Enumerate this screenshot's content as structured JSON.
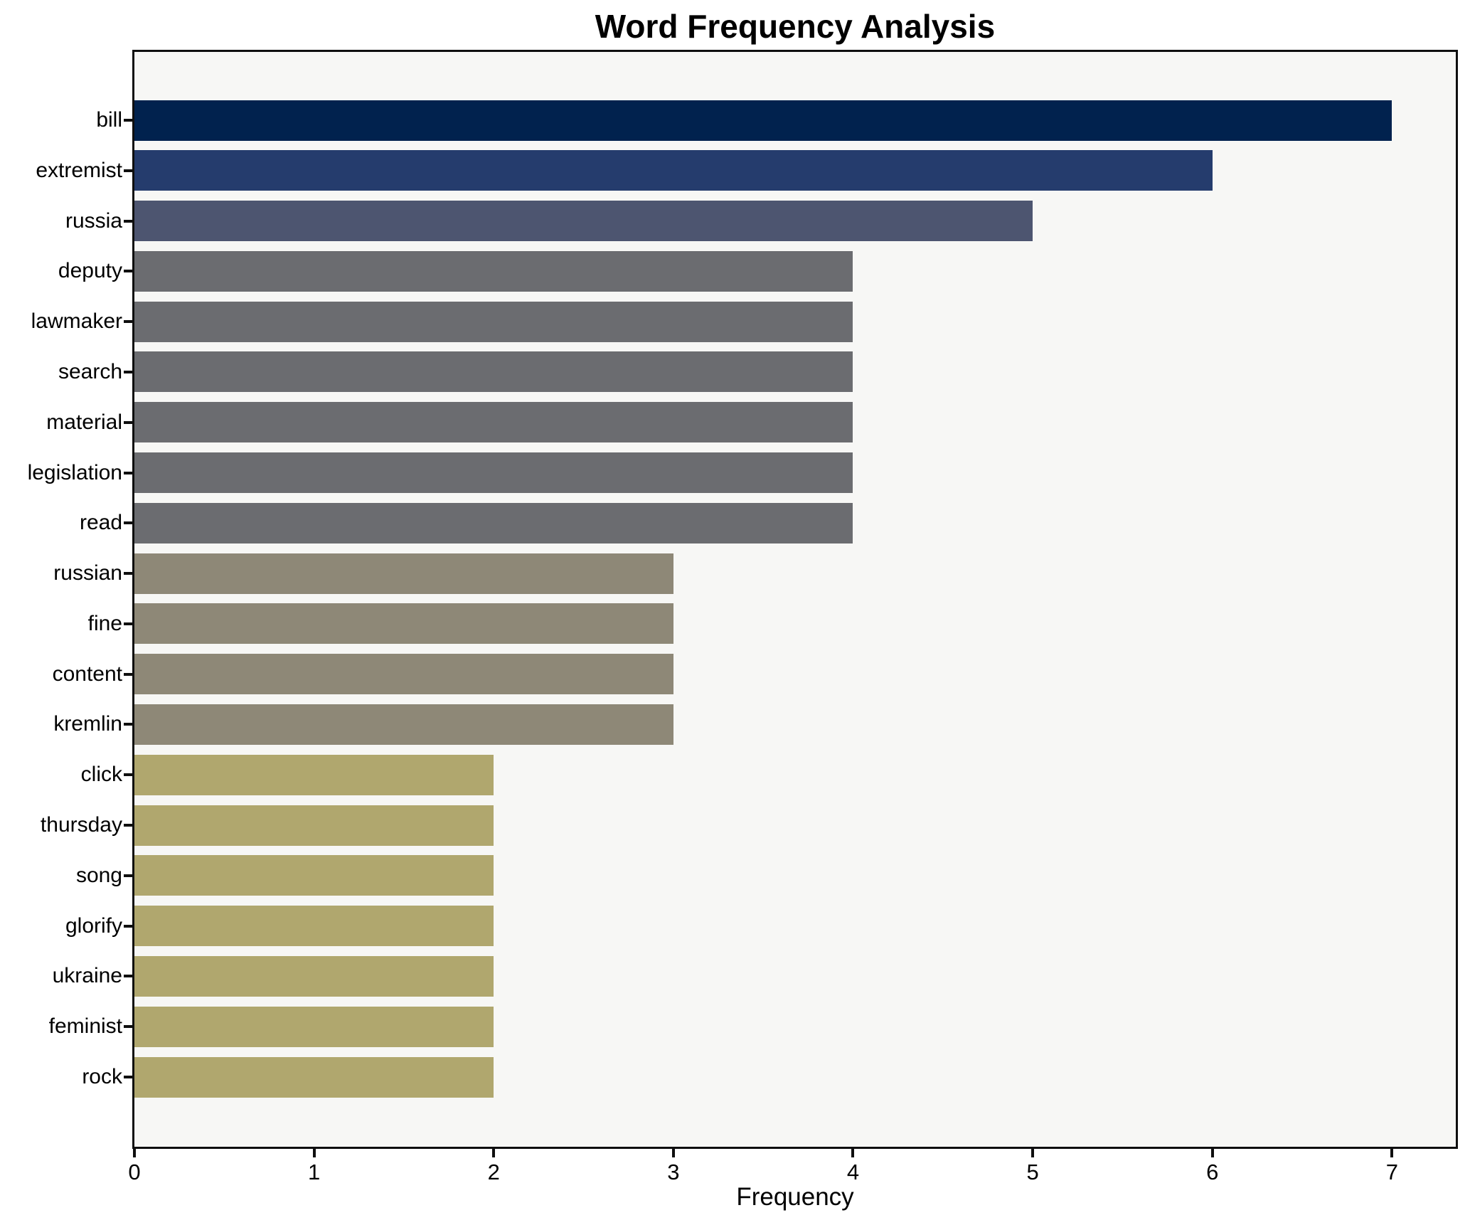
{
  "chart_data": {
    "type": "bar",
    "orientation": "horizontal",
    "title": "Word Frequency Analysis",
    "xlabel": "Frequency",
    "ylabel": "",
    "xlim": [
      0,
      7.355
    ],
    "x_ticks": [
      0,
      1,
      2,
      3,
      4,
      5,
      6,
      7
    ],
    "grid": false,
    "legend": "none",
    "categories": [
      "bill",
      "extremist",
      "russia",
      "deputy",
      "lawmaker",
      "search",
      "material",
      "legislation",
      "read",
      "russian",
      "fine",
      "content",
      "kremlin",
      "click",
      "thursday",
      "song",
      "glorify",
      "ukraine",
      "feminist",
      "rock"
    ],
    "values": [
      7,
      6,
      5,
      4,
      4,
      4,
      4,
      4,
      4,
      3,
      3,
      3,
      3,
      2,
      2,
      2,
      2,
      2,
      2,
      2
    ],
    "bar_colors": [
      "#01224e",
      "#253c6d",
      "#4d5570",
      "#6b6c70",
      "#6b6c70",
      "#6b6c70",
      "#6b6c70",
      "#6b6c70",
      "#6b6c70",
      "#8e8877",
      "#8e8877",
      "#8e8877",
      "#8e8877",
      "#b0a76e",
      "#b0a76e",
      "#b0a76e",
      "#b0a76e",
      "#b0a76e",
      "#b0a76e",
      "#b0a76e"
    ]
  },
  "colors": {
    "figure_bg": "#ffffff",
    "plot_bg": "#f7f7f5",
    "spine": "#0f0f0f",
    "text": "#000000"
  }
}
